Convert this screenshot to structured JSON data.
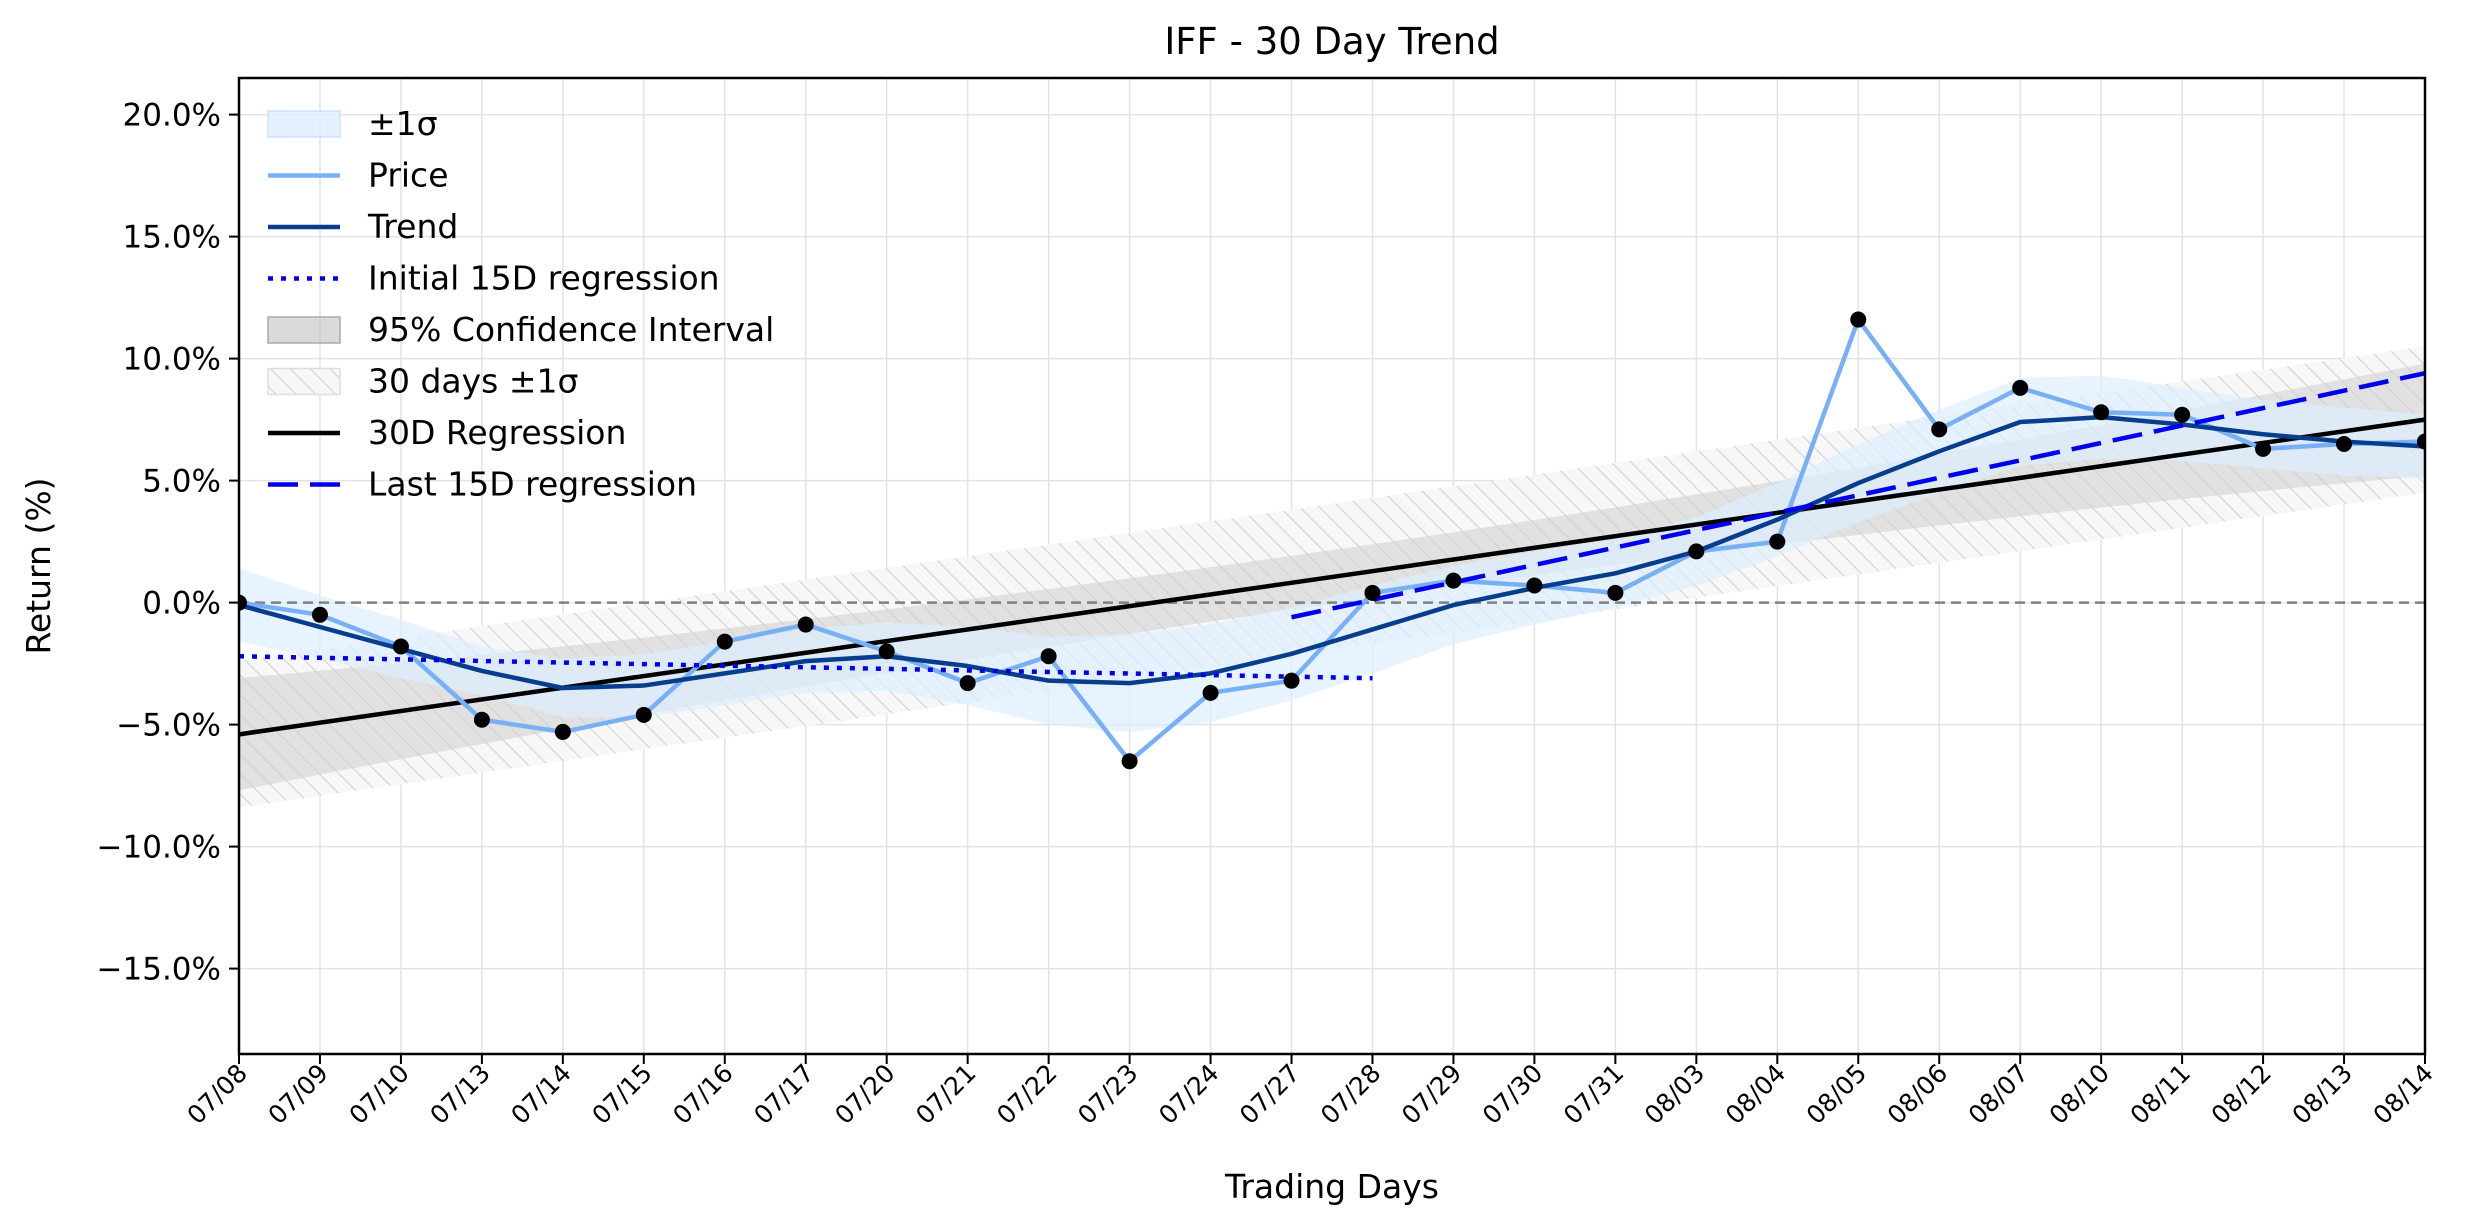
{
  "chart_data": {
    "type": "line",
    "title": "IFF - 30 Day Trend",
    "xlabel": "Trading Days",
    "ylabel": "Return (%)",
    "ylim": [
      -18.5,
      21.5
    ],
    "yticks": [
      -15,
      -10,
      -5,
      0,
      5,
      10,
      15,
      20
    ],
    "ytick_labels": [
      "−15.0%",
      "−10.0%",
      "−5.0%",
      "0.0%",
      "5.0%",
      "10.0%",
      "15.0%",
      "20.0%"
    ],
    "grid": true,
    "legend_position": "top-left",
    "categories": [
      "07/08",
      "07/09",
      "07/10",
      "07/13",
      "07/14",
      "07/15",
      "07/16",
      "07/17",
      "07/20",
      "07/21",
      "07/22",
      "07/23",
      "07/24",
      "07/27",
      "07/28",
      "07/29",
      "07/30",
      "07/31",
      "08/03",
      "08/04",
      "08/05",
      "08/06",
      "08/07",
      "08/10",
      "08/11",
      "08/12",
      "08/13",
      "08/14"
    ],
    "series": [
      {
        "name": "Price",
        "color": "#77b0f5",
        "values": [
          0.0,
          -0.5,
          -1.8,
          -4.8,
          -5.3,
          -4.6,
          -1.6,
          -0.9,
          -2.0,
          -3.3,
          -2.2,
          -6.5,
          -3.7,
          -3.2,
          0.4,
          0.9,
          0.7,
          0.4,
          2.1,
          2.5,
          11.6,
          7.1,
          8.8,
          7.8,
          7.7,
          6.3,
          6.5,
          6.6
        ]
      },
      {
        "name": "Trend",
        "color": "#063d8c",
        "values": [
          -0.1,
          -1.0,
          -1.9,
          -2.8,
          -3.5,
          -3.4,
          -2.9,
          -2.4,
          -2.2,
          -2.6,
          -3.2,
          -3.3,
          -2.9,
          -2.1,
          -1.1,
          -0.1,
          0.6,
          1.2,
          2.1,
          3.4,
          4.9,
          6.2,
          7.4,
          7.6,
          7.3,
          6.9,
          6.6,
          6.4
        ]
      },
      {
        "name": "Initial 15D regression",
        "color": "#0000ee",
        "x_start": 0,
        "x_end": 14,
        "y_start": -2.2,
        "y_end": -3.1
      },
      {
        "name": "Last 15D regression",
        "color": "#0000ee",
        "x_start": 13,
        "x_end": 27,
        "y_start": -0.6,
        "y_end": 9.4
      },
      {
        "name": "30D Regression",
        "color": "#000000",
        "x_start": 0,
        "x_end": 27,
        "y_start": -5.4,
        "y_end": 7.5
      }
    ],
    "bands": [
      {
        "name": "±1σ",
        "color": "#ddeeff",
        "around": "Trend",
        "upper_offsets": [
          1.5,
          1.3,
          1.2,
          1.0,
          1.2,
          1.3,
          1.3,
          1.3,
          1.4,
          1.6,
          1.8,
          2.0,
          2.0,
          1.9,
          1.8,
          1.6,
          1.5,
          1.4,
          1.4,
          1.5,
          1.6,
          1.7,
          1.8,
          1.7,
          1.5,
          1.4,
          1.4,
          1.3
        ],
        "lower_offsets": [
          1.5,
          1.3,
          1.2,
          1.0,
          1.2,
          1.3,
          1.3,
          1.3,
          1.4,
          1.6,
          1.8,
          2.0,
          2.0,
          1.9,
          1.8,
          1.6,
          1.5,
          1.4,
          1.4,
          1.5,
          1.6,
          1.7,
          1.8,
          1.7,
          1.5,
          1.4,
          1.4,
          1.3
        ]
      },
      {
        "name": "95% Confidence Interval",
        "color": "#bbbbbb",
        "around": "30D Regression",
        "upper_offsets_start": 2.3,
        "upper_offsets_mid": 1.1,
        "upper_offsets_end": 2.3
      },
      {
        "name": "30 days ±1σ",
        "color": "#e6e6e6",
        "around": "30D Regression",
        "offset": 3.0
      }
    ],
    "reference_line": {
      "y": 0,
      "color": "#808080",
      "style": "dashed"
    },
    "legend": [
      {
        "label": "±1σ",
        "kind": "patch",
        "color": "#ddeeff"
      },
      {
        "label": "Price",
        "kind": "line",
        "color": "#77b0f5"
      },
      {
        "label": "Trend",
        "kind": "line",
        "color": "#063d8c"
      },
      {
        "label": "Initial 15D regression",
        "kind": "dotted",
        "color": "#0000ee"
      },
      {
        "label": "95% Confidence Interval",
        "kind": "patch",
        "color": "#bbbbbb"
      },
      {
        "label": "30 days ±1σ",
        "kind": "hatch",
        "color": "#e6e6e6"
      },
      {
        "label": "30D Regression",
        "kind": "line",
        "color": "#000000"
      },
      {
        "label": "Last 15D regression",
        "kind": "dashed",
        "color": "#0000ee"
      }
    ]
  }
}
